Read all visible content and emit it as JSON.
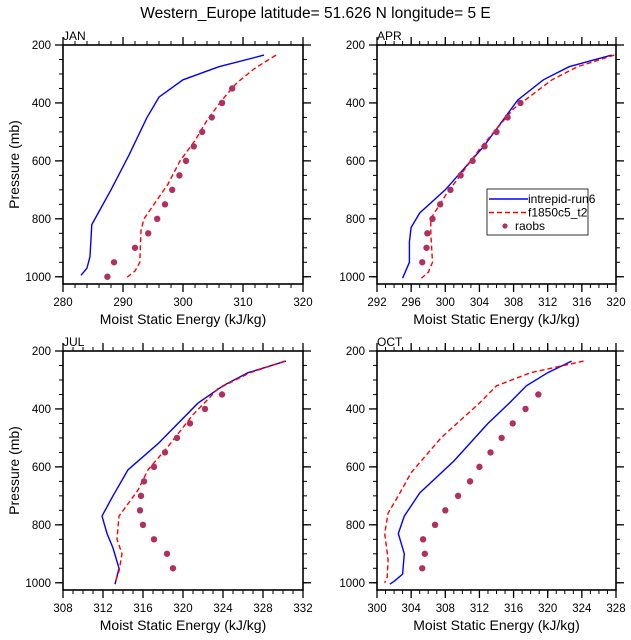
{
  "title": "Western_Europe  latitude= 51.626 N longitude= 5 E",
  "chart_data": [
    {
      "type": "line",
      "panel": "JAN",
      "title": "JAN",
      "xlabel": "Moist Static Energy (kJ/kg)",
      "ylabel": "Pressure (mb)",
      "xlim": [
        280,
        320
      ],
      "ylim": [
        1025,
        200
      ],
      "y_inverted": true,
      "xticks": [
        280,
        290,
        300,
        310,
        320
      ],
      "xminor_step": 2,
      "yticks": [
        200,
        400,
        600,
        800,
        1000
      ],
      "yminor_step": 50,
      "grid": false,
      "series": [
        {
          "name": "intrepid-run6",
          "style": "solid",
          "color": "#0000ff",
          "points": [
            [
              313.5,
              235
            ],
            [
              306,
              275
            ],
            [
              300,
              320
            ],
            [
              296,
              380
            ],
            [
              294,
              450
            ],
            [
              291,
              580
            ],
            [
              288,
              700
            ],
            [
              284.8,
              820
            ],
            [
              284.5,
              930
            ],
            [
              284,
              970
            ],
            [
              283,
              995
            ]
          ]
        },
        {
          "name": "f1850c5_t2",
          "style": "dashed",
          "color": "#ff0000",
          "points": [
            [
              315.5,
              235
            ],
            [
              312,
              280
            ],
            [
              309,
              330
            ],
            [
              306.5,
              390
            ],
            [
              304,
              460
            ],
            [
              302,
              530
            ],
            [
              299.5,
              600
            ],
            [
              297.5,
              680
            ],
            [
              294.5,
              770
            ],
            [
              293.5,
              800
            ],
            [
              293,
              840
            ],
            [
              292.8,
              950
            ],
            [
              292,
              980
            ],
            [
              290.5,
              1005
            ]
          ]
        },
        {
          "name": "raobs",
          "style": "markers",
          "color": "#b03060",
          "points": [
            [
              308.2,
              350
            ],
            [
              306.5,
              400
            ],
            [
              304.8,
              450
            ],
            [
              303.2,
              500
            ],
            [
              301.8,
              550
            ],
            [
              300.5,
              600
            ],
            [
              299.4,
              650
            ],
            [
              298.2,
              700
            ],
            [
              297.0,
              750
            ],
            [
              295.7,
              800
            ],
            [
              294.2,
              850
            ],
            [
              292.0,
              900
            ],
            [
              288.5,
              950
            ],
            [
              287.4,
              1000
            ]
          ]
        }
      ]
    },
    {
      "type": "line",
      "panel": "APR",
      "title": "APR",
      "xlabel": "Moist Static Energy (kJ/kg)",
      "ylabel": "",
      "xlim": [
        292,
        320
      ],
      "ylim": [
        1025,
        200
      ],
      "y_inverted": true,
      "xticks": [
        292,
        296,
        300,
        304,
        308,
        312,
        316,
        320
      ],
      "xminor_step": 1,
      "yticks": [
        200,
        400,
        600,
        800,
        1000
      ],
      "yminor_step": 50,
      "grid": false,
      "legend": {
        "placement": "center-right",
        "entries": [
          "intrepid-run6",
          "f1850c5_t2",
          "raobs"
        ]
      },
      "series": [
        {
          "name": "intrepid-run6",
          "style": "solid",
          "color": "#0000ff",
          "points": [
            [
              319.5,
              235
            ],
            [
              314.5,
              275
            ],
            [
              311.5,
              320
            ],
            [
              308.5,
              390
            ],
            [
              304.5,
              550
            ],
            [
              300,
              700
            ],
            [
              297,
              780
            ],
            [
              296,
              830
            ],
            [
              295.8,
              880
            ],
            [
              295.8,
              950
            ],
            [
              295,
              1005
            ]
          ]
        },
        {
          "name": "f1850c5_t2",
          "style": "dashed",
          "color": "#ff0000",
          "points": [
            [
              319.8,
              235
            ],
            [
              315.5,
              275
            ],
            [
              312.5,
              320
            ],
            [
              308,
              420
            ],
            [
              304,
              560
            ],
            [
              300,
              720
            ],
            [
              298.3,
              800
            ],
            [
              298.3,
              850
            ],
            [
              298.5,
              950
            ],
            [
              298,
              985
            ],
            [
              297.2,
              1005
            ]
          ]
        },
        {
          "name": "raobs",
          "style": "markers",
          "color": "#b03060",
          "points": [
            [
              308.8,
              400
            ],
            [
              307.3,
              450
            ],
            [
              306.0,
              500
            ],
            [
              304.6,
              550
            ],
            [
              303.2,
              600
            ],
            [
              301.8,
              650
            ],
            [
              300.6,
              700
            ],
            [
              299.4,
              750
            ],
            [
              298.5,
              800
            ],
            [
              297.9,
              850
            ],
            [
              297.8,
              900
            ],
            [
              297.3,
              950
            ]
          ]
        }
      ]
    },
    {
      "type": "line",
      "panel": "JUL",
      "title": "JUL",
      "xlabel": "Moist Static Energy (kJ/kg)",
      "ylabel": "Pressure (mb)",
      "xlim": [
        308,
        332
      ],
      "ylim": [
        1025,
        200
      ],
      "y_inverted": true,
      "xticks": [
        308,
        312,
        316,
        320,
        324,
        328,
        332
      ],
      "xminor_step": 1,
      "yticks": [
        200,
        400,
        600,
        800,
        1000
      ],
      "yminor_step": 50,
      "grid": false,
      "series": [
        {
          "name": "intrepid-run6",
          "style": "solid",
          "color": "#0000ff",
          "points": [
            [
              330.3,
              235
            ],
            [
              326.5,
              275
            ],
            [
              324,
              320
            ],
            [
              321.5,
              380
            ],
            [
              317.5,
              520
            ],
            [
              314.5,
              610
            ],
            [
              313,
              700
            ],
            [
              311.9,
              770
            ],
            [
              312.4,
              830
            ],
            [
              313,
              880
            ],
            [
              313.6,
              950
            ],
            [
              313.2,
              1005
            ]
          ]
        },
        {
          "name": "f1850c5_t2",
          "style": "dashed",
          "color": "#ff0000",
          "points": [
            [
              330.2,
              235
            ],
            [
              326.7,
              275
            ],
            [
              323.5,
              330
            ],
            [
              321,
              420
            ],
            [
              318.5,
              530
            ],
            [
              316.5,
              610
            ],
            [
              315.5,
              680
            ],
            [
              313.6,
              770
            ],
            [
              313.4,
              850
            ],
            [
              313.9,
              900
            ],
            [
              313.6,
              960
            ],
            [
              313.2,
              1000
            ]
          ]
        },
        {
          "name": "raobs",
          "style": "markers",
          "color": "#b03060",
          "points": [
            [
              323.9,
              350
            ],
            [
              322.2,
              400
            ],
            [
              320.7,
              450
            ],
            [
              319.4,
              500
            ],
            [
              318.2,
              550
            ],
            [
              317.1,
              600
            ],
            [
              316.1,
              650
            ],
            [
              315.8,
              700
            ],
            [
              315.7,
              750
            ],
            [
              316.0,
              800
            ],
            [
              317.1,
              850
            ],
            [
              318.4,
              900
            ],
            [
              319.0,
              950
            ]
          ]
        }
      ]
    },
    {
      "type": "line",
      "panel": "OCT",
      "title": "OCT",
      "xlabel": "Moist Static Energy (kJ/kg)",
      "ylabel": "",
      "xlim": [
        300,
        328
      ],
      "ylim": [
        1025,
        200
      ],
      "y_inverted": true,
      "xticks": [
        300,
        304,
        308,
        312,
        316,
        320,
        324,
        328
      ],
      "xminor_step": 1,
      "yticks": [
        200,
        400,
        600,
        800,
        1000
      ],
      "yminor_step": 50,
      "grid": false,
      "series": [
        {
          "name": "intrepid-run6",
          "style": "solid",
          "color": "#0000ff",
          "points": [
            [
              322.8,
              235
            ],
            [
              320,
              275
            ],
            [
              317.5,
              320
            ],
            [
              315.5,
              380
            ],
            [
              313,
              450
            ],
            [
              309,
              580
            ],
            [
              305,
              690
            ],
            [
              303.2,
              770
            ],
            [
              302.5,
              830
            ],
            [
              303.2,
              900
            ],
            [
              303,
              970
            ],
            [
              302,
              995
            ],
            [
              301.5,
              1005
            ]
          ]
        },
        {
          "name": "f1850c5_t2",
          "style": "dashed",
          "color": "#ff0000",
          "points": [
            [
              324.2,
              235
            ],
            [
              318,
              275
            ],
            [
              314,
              320
            ],
            [
              312,
              380
            ],
            [
              307.5,
              500
            ],
            [
              304,
              620
            ],
            [
              302.5,
              700
            ],
            [
              301.3,
              760
            ],
            [
              300.9,
              830
            ],
            [
              301.3,
              920
            ],
            [
              301.2,
              980
            ],
            [
              300.9,
              1000
            ]
          ]
        },
        {
          "name": "raobs",
          "style": "markers",
          "color": "#b03060",
          "points": [
            [
              318.9,
              350
            ],
            [
              317.4,
              400
            ],
            [
              315.9,
              450
            ],
            [
              314.6,
              500
            ],
            [
              313.3,
              550
            ],
            [
              312.0,
              600
            ],
            [
              310.9,
              650
            ],
            [
              309.5,
              700
            ],
            [
              308.0,
              750
            ],
            [
              306.8,
              800
            ],
            [
              305.4,
              850
            ],
            [
              305.6,
              900
            ],
            [
              305.3,
              950
            ]
          ]
        }
      ]
    }
  ]
}
